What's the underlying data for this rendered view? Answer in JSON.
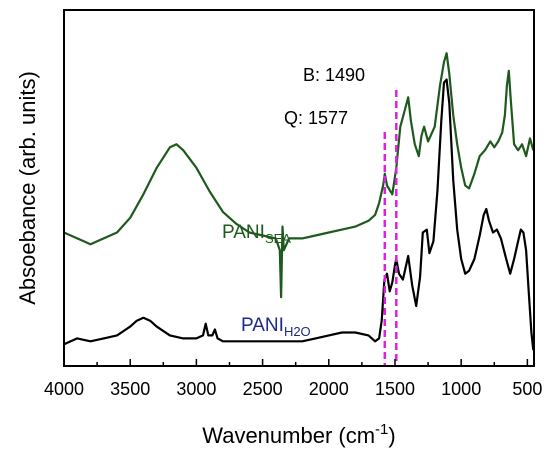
{
  "chart_data": {
    "type": "line",
    "xlabel": "Wavenumber (cm",
    "xlabel_sup": "-1",
    "xlabel_end": ")",
    "ylabel": "Absoebance (arb. units)",
    "x_reversed": true,
    "xlim": [
      4000,
      450
    ],
    "ylim": [
      0,
      1
    ],
    "x_ticks": [
      4000,
      3500,
      3000,
      2500,
      2000,
      1500,
      1000,
      500
    ],
    "y_ticks_shown": false,
    "grid": false,
    "legend": "none",
    "series": [
      {
        "label_main": "PANI",
        "label_sub": "SEA",
        "color": "#1e5a1e",
        "points": [
          [
            4000,
            0.42
          ],
          [
            3900,
            0.4
          ],
          [
            3800,
            0.38
          ],
          [
            3700,
            0.4
          ],
          [
            3600,
            0.42
          ],
          [
            3500,
            0.47
          ],
          [
            3400,
            0.55
          ],
          [
            3300,
            0.64
          ],
          [
            3200,
            0.71
          ],
          [
            3150,
            0.72
          ],
          [
            3100,
            0.7
          ],
          [
            3000,
            0.64
          ],
          [
            2900,
            0.56
          ],
          [
            2800,
            0.49
          ],
          [
            2700,
            0.45
          ],
          [
            2600,
            0.42
          ],
          [
            2500,
            0.41
          ],
          [
            2400,
            0.4
          ],
          [
            2370,
            0.36
          ],
          [
            2360,
            0.2
          ],
          [
            2350,
            0.44
          ],
          [
            2340,
            0.36
          ],
          [
            2300,
            0.4
          ],
          [
            2200,
            0.4
          ],
          [
            2100,
            0.41
          ],
          [
            2000,
            0.42
          ],
          [
            1900,
            0.43
          ],
          [
            1800,
            0.44
          ],
          [
            1700,
            0.46
          ],
          [
            1650,
            0.48
          ],
          [
            1620,
            0.52
          ],
          [
            1590,
            0.58
          ],
          [
            1577,
            0.62
          ],
          [
            1560,
            0.58
          ],
          [
            1520,
            0.55
          ],
          [
            1490,
            0.64
          ],
          [
            1460,
            0.78
          ],
          [
            1430,
            0.83
          ],
          [
            1400,
            0.88
          ],
          [
            1380,
            0.8
          ],
          [
            1350,
            0.72
          ],
          [
            1320,
            0.68
          ],
          [
            1300,
            0.75
          ],
          [
            1280,
            0.78
          ],
          [
            1250,
            0.73
          ],
          [
            1200,
            0.78
          ],
          [
            1160,
            0.92
          ],
          [
            1130,
            1.0
          ],
          [
            1110,
            1.03
          ],
          [
            1090,
            0.96
          ],
          [
            1060,
            0.82
          ],
          [
            1030,
            0.72
          ],
          [
            1000,
            0.64
          ],
          [
            970,
            0.58
          ],
          [
            940,
            0.57
          ],
          [
            900,
            0.62
          ],
          [
            860,
            0.68
          ],
          [
            820,
            0.7
          ],
          [
            780,
            0.73
          ],
          [
            750,
            0.71
          ],
          [
            720,
            0.73
          ],
          [
            690,
            0.76
          ],
          [
            670,
            0.82
          ],
          [
            655,
            0.92
          ],
          [
            640,
            0.97
          ],
          [
            625,
            0.87
          ],
          [
            600,
            0.72
          ],
          [
            570,
            0.7
          ],
          [
            540,
            0.72
          ],
          [
            510,
            0.68
          ],
          [
            480,
            0.74
          ],
          [
            455,
            0.7
          ]
        ]
      },
      {
        "label_main": "PANI",
        "label_sub": "H2O",
        "color": "#000000",
        "points": [
          [
            4000,
            0.04
          ],
          [
            3900,
            0.06
          ],
          [
            3800,
            0.05
          ],
          [
            3700,
            0.06
          ],
          [
            3600,
            0.07
          ],
          [
            3500,
            0.1
          ],
          [
            3450,
            0.12
          ],
          [
            3400,
            0.13
          ],
          [
            3350,
            0.12
          ],
          [
            3300,
            0.1
          ],
          [
            3200,
            0.07
          ],
          [
            3100,
            0.06
          ],
          [
            3000,
            0.06
          ],
          [
            2950,
            0.07
          ],
          [
            2930,
            0.11
          ],
          [
            2910,
            0.07
          ],
          [
            2880,
            0.07
          ],
          [
            2860,
            0.09
          ],
          [
            2840,
            0.06
          ],
          [
            2800,
            0.05
          ],
          [
            2700,
            0.05
          ],
          [
            2600,
            0.05
          ],
          [
            2500,
            0.05
          ],
          [
            2400,
            0.05
          ],
          [
            2300,
            0.05
          ],
          [
            2200,
            0.05
          ],
          [
            2100,
            0.06
          ],
          [
            2000,
            0.07
          ],
          [
            1900,
            0.08
          ],
          [
            1800,
            0.08
          ],
          [
            1700,
            0.07
          ],
          [
            1650,
            0.05
          ],
          [
            1620,
            0.06
          ],
          [
            1600,
            0.12
          ],
          [
            1580,
            0.26
          ],
          [
            1560,
            0.28
          ],
          [
            1540,
            0.22
          ],
          [
            1520,
            0.25
          ],
          [
            1500,
            0.31
          ],
          [
            1490,
            0.33
          ],
          [
            1470,
            0.28
          ],
          [
            1440,
            0.26
          ],
          [
            1400,
            0.34
          ],
          [
            1370,
            0.24
          ],
          [
            1340,
            0.17
          ],
          [
            1310,
            0.27
          ],
          [
            1290,
            0.42
          ],
          [
            1260,
            0.43
          ],
          [
            1240,
            0.35
          ],
          [
            1210,
            0.39
          ],
          [
            1180,
            0.56
          ],
          [
            1150,
            0.8
          ],
          [
            1130,
            0.93
          ],
          [
            1110,
            0.94
          ],
          [
            1090,
            0.86
          ],
          [
            1060,
            0.6
          ],
          [
            1030,
            0.43
          ],
          [
            1000,
            0.33
          ],
          [
            970,
            0.28
          ],
          [
            940,
            0.29
          ],
          [
            900,
            0.33
          ],
          [
            860,
            0.41
          ],
          [
            830,
            0.48
          ],
          [
            810,
            0.5
          ],
          [
            790,
            0.46
          ],
          [
            760,
            0.42
          ],
          [
            730,
            0.43
          ],
          [
            700,
            0.4
          ],
          [
            660,
            0.33
          ],
          [
            630,
            0.28
          ],
          [
            600,
            0.33
          ],
          [
            570,
            0.39
          ],
          [
            550,
            0.43
          ],
          [
            530,
            0.42
          ],
          [
            510,
            0.36
          ],
          [
            490,
            0.22
          ],
          [
            470,
            0.08
          ],
          [
            455,
            0.02
          ]
        ]
      }
    ],
    "annotations": [
      {
        "text": "Q: 1577",
        "x": 1577,
        "color": "#e020e0"
      },
      {
        "text": "B: 1490",
        "x": 1490,
        "color": "#e020e0"
      }
    ]
  }
}
